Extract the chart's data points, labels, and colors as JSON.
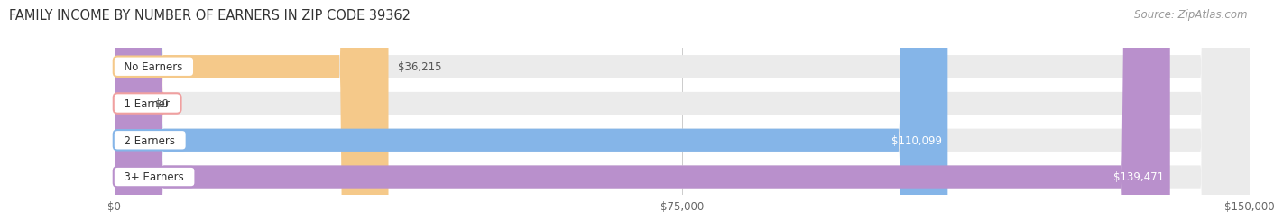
{
  "title": "FAMILY INCOME BY NUMBER OF EARNERS IN ZIP CODE 39362",
  "source": "Source: ZipAtlas.com",
  "categories": [
    "No Earners",
    "1 Earner",
    "2 Earners",
    "3+ Earners"
  ],
  "values": [
    36215,
    0,
    110099,
    139471
  ],
  "bar_colors": [
    "#f5c98a",
    "#f0a0a0",
    "#85b5e8",
    "#b990cc"
  ],
  "bar_bg_color": "#ebebeb",
  "value_labels": [
    "$36,215",
    "$0",
    "$110,099",
    "$139,471"
  ],
  "value_label_inside": [
    false,
    false,
    true,
    true
  ],
  "x_ticks": [
    0,
    75000,
    150000
  ],
  "x_tick_labels": [
    "$0",
    "$75,000",
    "$150,000"
  ],
  "xlim": [
    0,
    150000
  ],
  "background_color": "#ffffff",
  "title_fontsize": 10.5,
  "source_fontsize": 8.5,
  "bar_label_fontsize": 8.5,
  "value_fontsize": 8.5,
  "bar_height": 0.62,
  "bar_gap": 0.38
}
